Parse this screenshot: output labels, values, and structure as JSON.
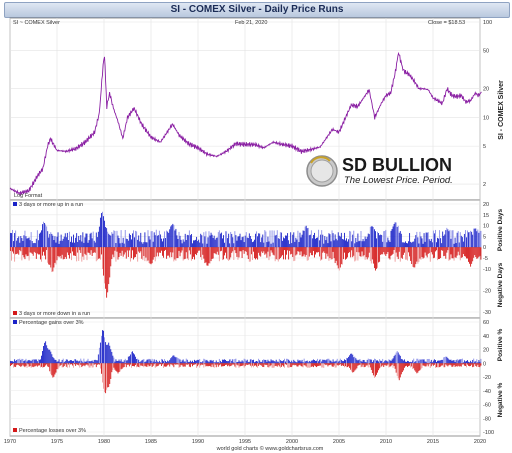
{
  "title": "SI  -  COMEX Silver - Daily Price Runs",
  "header": {
    "symbol_label": "SI  ~  COMEX Silver",
    "date_label": "Feb 21, 2020",
    "close_label": "Close = $18.53"
  },
  "logo": {
    "brand": "SD BULLION",
    "tagline": "The Lowest Price. Period."
  },
  "footer": "world gold charts © www.goldchartsrus.com",
  "chart_data": [
    {
      "type": "line",
      "id": "price",
      "xlabel": "",
      "ylabel": "SI - COMEX Silver",
      "scale": "log",
      "note": "Log Format",
      "ylim": [
        1.5,
        100
      ],
      "yticks": [
        {
          "v": 2,
          "label": "2"
        },
        {
          "v": 5,
          "label": "5"
        },
        {
          "v": 10,
          "label": "10"
        },
        {
          "v": 20,
          "label": "20"
        },
        {
          "v": 50,
          "label": "50"
        },
        {
          "v": 100,
          "label": "100"
        }
      ],
      "xlim": [
        1970,
        2020
      ],
      "x": [
        1970.0,
        1971.0,
        1972.0,
        1973.0,
        1973.5,
        1974.0,
        1974.3,
        1975.0,
        1976.0,
        1977.0,
        1978.0,
        1979.0,
        1979.5,
        1979.9,
        1980.05,
        1980.3,
        1980.6,
        1981.0,
        1981.5,
        1982.0,
        1982.5,
        1983.2,
        1984.0,
        1985.0,
        1986.0,
        1987.3,
        1988.0,
        1989.0,
        1990.0,
        1991.0,
        1992.0,
        1993.0,
        1994.0,
        1995.0,
        1996.0,
        1997.0,
        1998.0,
        1999.0,
        2000.0,
        2001.0,
        2002.0,
        2003.0,
        2004.3,
        2005.0,
        2006.3,
        2007.0,
        2008.2,
        2008.8,
        2009.5,
        2010.0,
        2010.5,
        2011.0,
        2011.33,
        2011.8,
        2012.0,
        2012.5,
        2013.0,
        2013.5,
        2014.0,
        2014.5,
        2015.0,
        2015.5,
        2016.0,
        2016.5,
        2017.0,
        2017.5,
        2018.0,
        2018.5,
        2019.0,
        2019.5,
        2019.8,
        2020.0,
        2020.15
      ],
      "y": [
        1.8,
        1.6,
        1.7,
        2.5,
        2.9,
        5.0,
        6.0,
        4.5,
        4.4,
        4.7,
        5.5,
        7.0,
        11.0,
        35.0,
        45.0,
        13.0,
        18.0,
        12.5,
        9.0,
        6.0,
        10.0,
        12.5,
        8.5,
        6.2,
        5.5,
        8.5,
        6.5,
        5.3,
        4.8,
        4.1,
        3.9,
        4.4,
        5.3,
        5.2,
        5.2,
        4.8,
        5.5,
        5.2,
        5.0,
        4.4,
        4.6,
        4.9,
        7.5,
        7.0,
        13.5,
        13.0,
        19.5,
        10.0,
        14.0,
        17.0,
        18.0,
        30.0,
        48.0,
        32.0,
        30.0,
        28.0,
        24.0,
        20.0,
        20.0,
        19.5,
        16.0,
        15.0,
        14.0,
        20.0,
        17.0,
        16.5,
        17.0,
        14.5,
        15.0,
        18.0,
        17.0,
        17.5,
        18.5
      ],
      "series": [
        {
          "name": "",
          "color": "#8a1fa3"
        }
      ]
    },
    {
      "type": "bar",
      "id": "runs",
      "ylabel_top": "Positive Days",
      "ylabel_bottom": "Negative Days",
      "ylim": [
        -30,
        20
      ],
      "yticks": [
        20,
        15,
        10,
        5,
        0,
        -5,
        -10,
        -20,
        -30
      ],
      "legend_top": "3 days or more up in a run",
      "legend_bottom": "3 days or more down in a run",
      "series": [
        {
          "name": "3 days or more up in a run",
          "color": "#1a23c8",
          "typical": 6,
          "spikes": [
            [
              1979.8,
              17
            ],
            [
              1973.6,
              12
            ],
            [
              1987.3,
              11
            ],
            [
              2001.5,
              10
            ],
            [
              2008.5,
              10
            ],
            [
              2011.0,
              12
            ],
            [
              2016.5,
              9
            ],
            [
              2019.5,
              9
            ]
          ]
        },
        {
          "name": "3 days or more down in a run",
          "color": "#d41919",
          "typical": -5,
          "spikes": [
            [
              1980.3,
              -24
            ],
            [
              1974.5,
              -12
            ],
            [
              1985.0,
              -8
            ],
            [
              1991.0,
              -9
            ],
            [
              2005.0,
              -11
            ],
            [
              2008.9,
              -11
            ],
            [
              2013.0,
              -10
            ],
            [
              2019.0,
              -9
            ]
          ]
        }
      ]
    },
    {
      "type": "bar",
      "id": "pct",
      "ylabel_top": "Positive %",
      "ylabel_bottom": "Negative %",
      "ylim": [
        -100,
        60
      ],
      "yticks": [
        60,
        40,
        20,
        0,
        -20,
        -40,
        -60,
        -80,
        -100
      ],
      "legend_top": "Percentage gains over 3%",
      "legend_bottom": "Percentage losses over 3%",
      "series": [
        {
          "name": "Percentage gains over 3%",
          "color": "#1a23c8",
          "typical": 5,
          "spikes": [
            [
              1979.9,
              53
            ],
            [
              1980.5,
              30
            ],
            [
              1973.8,
              38
            ],
            [
              1974.2,
              20
            ],
            [
              1983.0,
              18
            ],
            [
              1987.4,
              12
            ],
            [
              2006.3,
              15
            ],
            [
              2011.2,
              18
            ],
            [
              2016.4,
              10
            ]
          ]
        },
        {
          "name": "Percentage losses over 3%",
          "color": "#d41919",
          "typical": -5,
          "spikes": [
            [
              1980.2,
              -60
            ],
            [
              1980.4,
              -35
            ],
            [
              1974.6,
              -22
            ],
            [
              1981.5,
              -15
            ],
            [
              2006.5,
              -14
            ],
            [
              2008.8,
              -22
            ],
            [
              2011.4,
              -25
            ],
            [
              2013.3,
              -15
            ]
          ]
        }
      ]
    }
  ],
  "xaxis": {
    "ticks": [
      {
        "v": 1970,
        "label": "1970"
      },
      {
        "v": 1975,
        "label": "1975"
      },
      {
        "v": 1980,
        "label": "1980"
      },
      {
        "v": 1985,
        "label": "1985"
      },
      {
        "v": 1990,
        "label": "1990"
      },
      {
        "v": 1995,
        "label": "1995"
      },
      {
        "v": 2000,
        "label": "2000"
      },
      {
        "v": 2005,
        "label": "2005"
      },
      {
        "v": 2010,
        "label": "2010"
      },
      {
        "v": 2015,
        "label": "2015"
      },
      {
        "v": 2020,
        "label": "2020"
      }
    ]
  }
}
